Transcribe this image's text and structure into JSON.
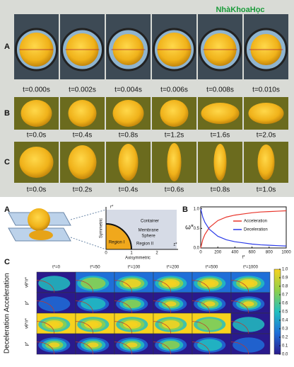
{
  "watermark": "NhàKhoaHọc",
  "photos": {
    "rows": [
      {
        "label": "A",
        "times": [
          "t=0.000s",
          "t=0.002s",
          "t=0.004s",
          "t=0.006s",
          "t=0.008s",
          "t=0.010s"
        ]
      },
      {
        "label": "B",
        "times": [
          "t=0.0s",
          "t=0.4s",
          "t=0.8s",
          "t=1.2s",
          "t=1.6s",
          "t=2.0s"
        ]
      },
      {
        "label": "C",
        "times": [
          "t=0.0s",
          "t=0.2s",
          "t=0.4s",
          "t=0.6s",
          "t=0.8s",
          "t=1.0s"
        ]
      }
    ]
  },
  "diagram": {
    "label": "A",
    "axis_r": "r*",
    "symmetric": "Symmetric",
    "container": "Container",
    "membrane": "Membrane",
    "sphere": "Sphere",
    "region1": "Region I",
    "region2": "Region II",
    "ticks": [
      "0",
      "1",
      "2"
    ],
    "axis_z": "z*",
    "axisymmetric": "Axisymmetric"
  },
  "chart_data": {
    "type": "line",
    "label": "B",
    "xlabel": "t*",
    "ylabel": "ω*",
    "xlim": [
      0,
      1000
    ],
    "xticks": [
      0,
      200,
      400,
      600,
      800,
      1000
    ],
    "ylim": [
      0,
      1.05
    ],
    "yticks": [
      {
        "value": 0,
        "label": "0.0"
      },
      0.5,
      {
        "value": 1,
        "label": "1.0"
      }
    ],
    "legend": "right",
    "series": [
      {
        "name": "Acceleration",
        "color": "#e8352b",
        "x": [
          0,
          25,
          50,
          100,
          200,
          300,
          400,
          500,
          600,
          700,
          800,
          900,
          1000
        ],
        "values": [
          0,
          0.22,
          0.35,
          0.52,
          0.7,
          0.79,
          0.84,
          0.87,
          0.9,
          0.92,
          0.93,
          0.94,
          0.95
        ]
      },
      {
        "name": "Deceleration",
        "color": "#2b3be8",
        "x": [
          0,
          25,
          50,
          100,
          200,
          300,
          400,
          500,
          600,
          700,
          800,
          900,
          1000
        ],
        "values": [
          1,
          0.78,
          0.65,
          0.48,
          0.3,
          0.21,
          0.16,
          0.13,
          0.1,
          0.08,
          0.07,
          0.06,
          0.05
        ]
      }
    ]
  },
  "contours": {
    "label": "C",
    "columns": [
      "t*=0",
      "t*=50",
      "t*=100",
      "t*=200",
      "t*=500",
      "t*=1000"
    ],
    "groups": [
      {
        "name": "Acceleration",
        "rows": [
          "vθ*/r*",
          "p*"
        ]
      },
      {
        "name": "Deceleration",
        "rows": [
          "vθ*/r*",
          "p*"
        ]
      }
    ],
    "colorbar": {
      "lim": [
        0,
        1
      ],
      "ticks": [
        {
          "value": 0,
          "label": "0.0"
        },
        0.1,
        0.2,
        0.3,
        0.4,
        0.5,
        0.6,
        0.7,
        0.8,
        0.9,
        {
          "value": 1,
          "label": "1.0"
        }
      ]
    }
  }
}
